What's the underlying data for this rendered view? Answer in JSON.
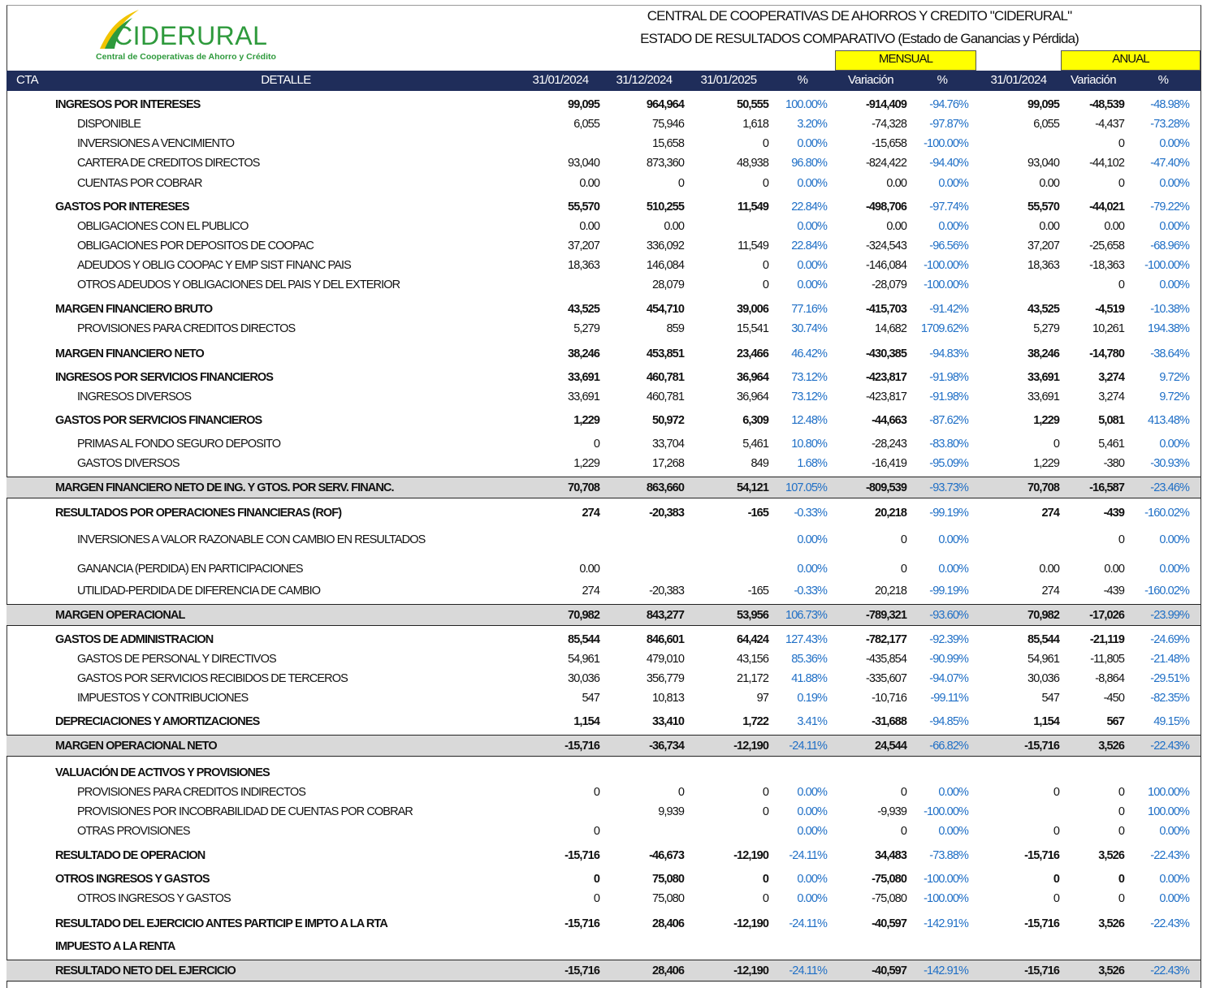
{
  "header": {
    "logo_name": "CIDERURAL",
    "logo_tagline": "Central de Cooperativas de Ahorro y Crédito",
    "title": "CENTRAL DE COOPERATIVAS DE AHORROS Y CREDITO \"CIDERURAL\"",
    "subtitle": "ESTADO DE RESULTADOS COMPARATIVO (Estado de Ganancias y  Pérdida)",
    "group_monthly": "MENSUAL",
    "group_annual": "ANUAL"
  },
  "table": {
    "columns": [
      "CTA",
      "DETALLE",
      "31/01/2024",
      "31/12/2024",
      "31/01/2025",
      "%",
      "Variación",
      "%",
      "31/01/2024",
      "Variación",
      "%"
    ],
    "rows": [
      {
        "label": "INGRESOS POR INTERESES",
        "style": "bold",
        "cells": [
          "99,095",
          "964,964",
          "50,555",
          "100.00%",
          "-914,409",
          "-94.76%",
          "99,095",
          "-48,539",
          "-48.98%"
        ]
      },
      {
        "label": "DISPONIBLE",
        "style": "normal",
        "cells": [
          "6,055",
          "75,946",
          "1,618",
          "3.20%",
          "-74,328",
          "-97.87%",
          "6,055",
          "-4,437",
          "-73.28%"
        ]
      },
      {
        "label": "INVERSIONES A VENCIMIENTO",
        "style": "normal",
        "cells": [
          null,
          "15,658",
          "0",
          "0.00%",
          "-15,658",
          "-100.00%",
          null,
          "0",
          "0.00%"
        ]
      },
      {
        "label": "CARTERA DE CREDITOS DIRECTOS",
        "style": "normal",
        "cells": [
          "93,040",
          "873,360",
          "48,938",
          "96.80%",
          "-824,422",
          "-94.40%",
          "93,040",
          "-44,102",
          "-47.40%"
        ]
      },
      {
        "label": "CUENTAS POR COBRAR",
        "style": "normal",
        "cells": [
          "0.00",
          "0",
          "0",
          "0.00%",
          "0.00",
          "0.00%",
          "0.00",
          "0",
          "0.00%"
        ]
      },
      {
        "label": "GASTOS POR INTERESES",
        "style": "bold",
        "cells": [
          "55,570",
          "510,255",
          "11,549",
          "22.84%",
          "-498,706",
          "-97.74%",
          "55,570",
          "-44,021",
          "-79.22%"
        ]
      },
      {
        "label": "OBLIGACIONES CON EL PUBLICO",
        "style": "normal",
        "cells": [
          "0.00",
          "0.00",
          null,
          "0.00%",
          "0.00",
          "0.00%",
          "0.00",
          "0.00",
          "0.00%"
        ]
      },
      {
        "label": "OBLIGACIONES POR DEPOSITOS DE COOPAC",
        "style": "normal",
        "cells": [
          "37,207",
          "336,092",
          "11,549",
          "22.84%",
          "-324,543",
          "-96.56%",
          "37,207",
          "-25,658",
          "-68.96%"
        ]
      },
      {
        "label": "ADEUDOS Y OBLIG COOPAC Y EMP SIST FINANC PAIS",
        "style": "normal",
        "cells": [
          "18,363",
          "146,084",
          "0",
          "0.00%",
          "-146,084",
          "-100.00%",
          "18,363",
          "-18,363",
          "-100.00%"
        ]
      },
      {
        "label": "OTROS ADEUDOS Y OBLIGACIONES DEL PAIS Y DEL EXTERIOR",
        "style": "normal",
        "cells": [
          null,
          "28,079",
          "0",
          "0.00%",
          "-28,079",
          "-100.00%",
          null,
          "0",
          "0.00%"
        ]
      },
      {
        "label": "MARGEN FINANCIERO BRUTO",
        "style": "bold",
        "cells": [
          "43,525",
          "454,710",
          "39,006",
          "77.16%",
          "-415,703",
          "-91.42%",
          "43,525",
          "-4,519",
          "-10.38%"
        ]
      },
      {
        "label": "PROVISIONES PARA CREDITOS DIRECTOS",
        "style": "normal",
        "cells": [
          "5,279",
          "859",
          "15,541",
          "30.74%",
          "14,682",
          "1709.62%",
          "5,279",
          "10,261",
          "194.38%"
        ]
      },
      {
        "label": "MARGEN FINANCIERO NETO",
        "style": "bold",
        "cells": [
          "38,246",
          "453,851",
          "23,466",
          "46.42%",
          "-430,385",
          "-94.83%",
          "38,246",
          "-14,780",
          "-38.64%"
        ]
      },
      {
        "label": "INGRESOS POR SERVICIOS FINANCIEROS",
        "style": "bold",
        "cells": [
          "33,691",
          "460,781",
          "36,964",
          "73.12%",
          "-423,817",
          "-91.98%",
          "33,691",
          "3,274",
          "9.72%"
        ]
      },
      {
        "label": "INGRESOS DIVERSOS",
        "style": "normal",
        "cells": [
          "33,691",
          "460,781",
          "36,964",
          "73.12%",
          "-423,817",
          "-91.98%",
          "33,691",
          "3,274",
          "9.72%"
        ]
      },
      {
        "label": "GASTOS POR SERVICIOS FINANCIEROS",
        "style": "bold",
        "cells": [
          "1,229",
          "50,972",
          "6,309",
          "12.48%",
          "-44,663",
          "-87.62%",
          "1,229",
          "5,081",
          "413.48%"
        ]
      },
      {
        "label": "PRIMAS AL FONDO SEGURO DEPOSITO",
        "style": "normal",
        "cells": [
          "0",
          "33,704",
          "5,461",
          "10.80%",
          "-28,243",
          "-83.80%",
          "0",
          "5,461",
          "0.00%"
        ]
      },
      {
        "label": "GASTOS DIVERSOS",
        "style": "normal",
        "cells": [
          "1,229",
          "17,268",
          "849",
          "1.68%",
          "-16,419",
          "-95.09%",
          "1,229",
          "-380",
          "-30.93%"
        ]
      },
      {
        "label": "MARGEN FINANCIERO NETO DE ING. Y GTOS. POR SERV. FINANC.",
        "style": "total",
        "cells": [
          "70,708",
          "863,660",
          "54,121",
          "107.05%",
          "-809,539",
          "-93.73%",
          "70,708",
          "-16,587",
          "-23.46%"
        ]
      },
      {
        "label": "RESULTADOS POR OPERACIONES FINANCIERAS (ROF)",
        "style": "bold",
        "cells": [
          "274",
          "-20,383",
          "-165",
          "-0.33%",
          "20,218",
          "-99.19%",
          "274",
          "-439",
          "-160.02%"
        ]
      },
      {
        "label": "INVERSIONES A VALOR RAZONABLE CON CAMBIO EN RESULTADOS",
        "style": "normal",
        "cells": [
          null,
          null,
          null,
          "0.00%",
          "0",
          "0.00%",
          null,
          "0",
          "0.00%"
        ]
      },
      {
        "label": "GANANCIA (PERDIDA) EN PARTICIPACIONES",
        "style": "normal",
        "cells": [
          "0.00",
          null,
          null,
          "0.00%",
          "0",
          "0.00%",
          "0.00",
          "0.00",
          "0.00%"
        ]
      },
      {
        "label": "UTILIDAD-PERDIDA DE DIFERENCIA DE CAMBIO",
        "style": "normal",
        "cells": [
          "274",
          "-20,383",
          "-165",
          "-0.33%",
          "20,218",
          "-99.19%",
          "274",
          "-439",
          "-160.02%"
        ]
      },
      {
        "label": "MARGEN OPERACIONAL",
        "style": "total",
        "cells": [
          "70,982",
          "843,277",
          "53,956",
          "106.73%",
          "-789,321",
          "-93.60%",
          "70,982",
          "-17,026",
          "-23.99%"
        ]
      },
      {
        "label": "GASTOS DE ADMINISTRACION",
        "style": "bold",
        "cells": [
          "85,544",
          "846,601",
          "64,424",
          "127.43%",
          "-782,177",
          "-92.39%",
          "85,544",
          "-21,119",
          "-24.69%"
        ]
      },
      {
        "label": "GASTOS DE PERSONAL Y DIRECTIVOS",
        "style": "normal",
        "cells": [
          "54,961",
          "479,010",
          "43,156",
          "85.36%",
          "-435,854",
          "-90.99%",
          "54,961",
          "-11,805",
          "-21.48%"
        ]
      },
      {
        "label": "GASTOS POR SERVICIOS RECIBIDOS DE TERCEROS",
        "style": "normal",
        "cells": [
          "30,036",
          "356,779",
          "21,172",
          "41.88%",
          "-335,607",
          "-94.07%",
          "30,036",
          "-8,864",
          "-29.51%"
        ]
      },
      {
        "label": "IMPUESTOS Y CONTRIBUCIONES",
        "style": "normal",
        "cells": [
          "547",
          "10,813",
          "97",
          "0.19%",
          "-10,716",
          "-99.11%",
          "547",
          "-450",
          "-82.35%"
        ]
      },
      {
        "label": "DEPRECIACIONES Y AMORTIZACIONES",
        "style": "bold",
        "cells": [
          "1,154",
          "33,410",
          "1,722",
          "3.41%",
          "-31,688",
          "-94.85%",
          "1,154",
          "567",
          "49.15%"
        ]
      },
      {
        "label": "MARGEN OPERACIONAL NETO",
        "style": "total",
        "cells": [
          "-15,716",
          "-36,734",
          "-12,190",
          "-24.11%",
          "24,544",
          "-66.82%",
          "-15,716",
          "3,526",
          "-22.43%"
        ]
      },
      {
        "label": "VALUACIÓN DE ACTIVOS Y PROVISIONES",
        "style": "bold",
        "cells": [
          null,
          null,
          null,
          null,
          null,
          null,
          null,
          null,
          null
        ]
      },
      {
        "label": "PROVISIONES PARA CREDITOS INDIRECTOS",
        "style": "normal",
        "cells": [
          "0",
          "0",
          "0",
          "0.00%",
          "0",
          "0.00%",
          "0",
          "0",
          "100.00%"
        ]
      },
      {
        "label": "PROVISIONES POR INCOBRABILIDAD DE CUENTAS POR COBRAR",
        "style": "normal",
        "cells": [
          null,
          "9,939",
          "0",
          "0.00%",
          "-9,939",
          "-100.00%",
          null,
          "0",
          "100.00%"
        ]
      },
      {
        "label": "OTRAS PROVISIONES",
        "style": "normal",
        "cells": [
          "0",
          null,
          null,
          "0.00%",
          "0",
          "0.00%",
          "0",
          "0",
          "0.00%"
        ]
      },
      {
        "label": "RESULTADO DE OPERACION",
        "style": "bold",
        "cells": [
          "-15,716",
          "-46,673",
          "-12,190",
          "-24.11%",
          "34,483",
          "-73.88%",
          "-15,716",
          "3,526",
          "-22.43%"
        ]
      },
      {
        "label": "OTROS INGRESOS Y GASTOS",
        "style": "bold",
        "cells": [
          "0",
          "75,080",
          "0",
          "0.00%",
          "-75,080",
          "-100.00%",
          "0",
          "0",
          "0.00%"
        ]
      },
      {
        "label": "OTROS INGRESOS Y GASTOS",
        "style": "normal",
        "cells": [
          "0",
          "75,080",
          "0",
          "0.00%",
          "-75,080",
          "-100.00%",
          "0",
          "0",
          "0.00%"
        ]
      },
      {
        "label": "RESULTADO DEL EJERCICIO ANTES PARTICIP E IMPTO A LA RTA",
        "style": "bold",
        "cells": [
          "-15,716",
          "28,406",
          "-12,190",
          "-24.11%",
          "-40,597",
          "-142.91%",
          "-15,716",
          "3,526",
          "-22.43%"
        ]
      },
      {
        "label": "IMPUESTO A LA RENTA",
        "style": "bold",
        "cells": [
          null,
          null,
          null,
          null,
          null,
          null,
          null,
          null,
          null
        ]
      },
      {
        "label": "RESULTADO NETO DEL EJERCICIO",
        "style": "total",
        "cells": [
          "-15,716",
          "28,406",
          "-12,190",
          "-24.11%",
          "-40,597",
          "-142.91%",
          "-15,716",
          "3,526",
          "-22.43%"
        ]
      }
    ]
  }
}
